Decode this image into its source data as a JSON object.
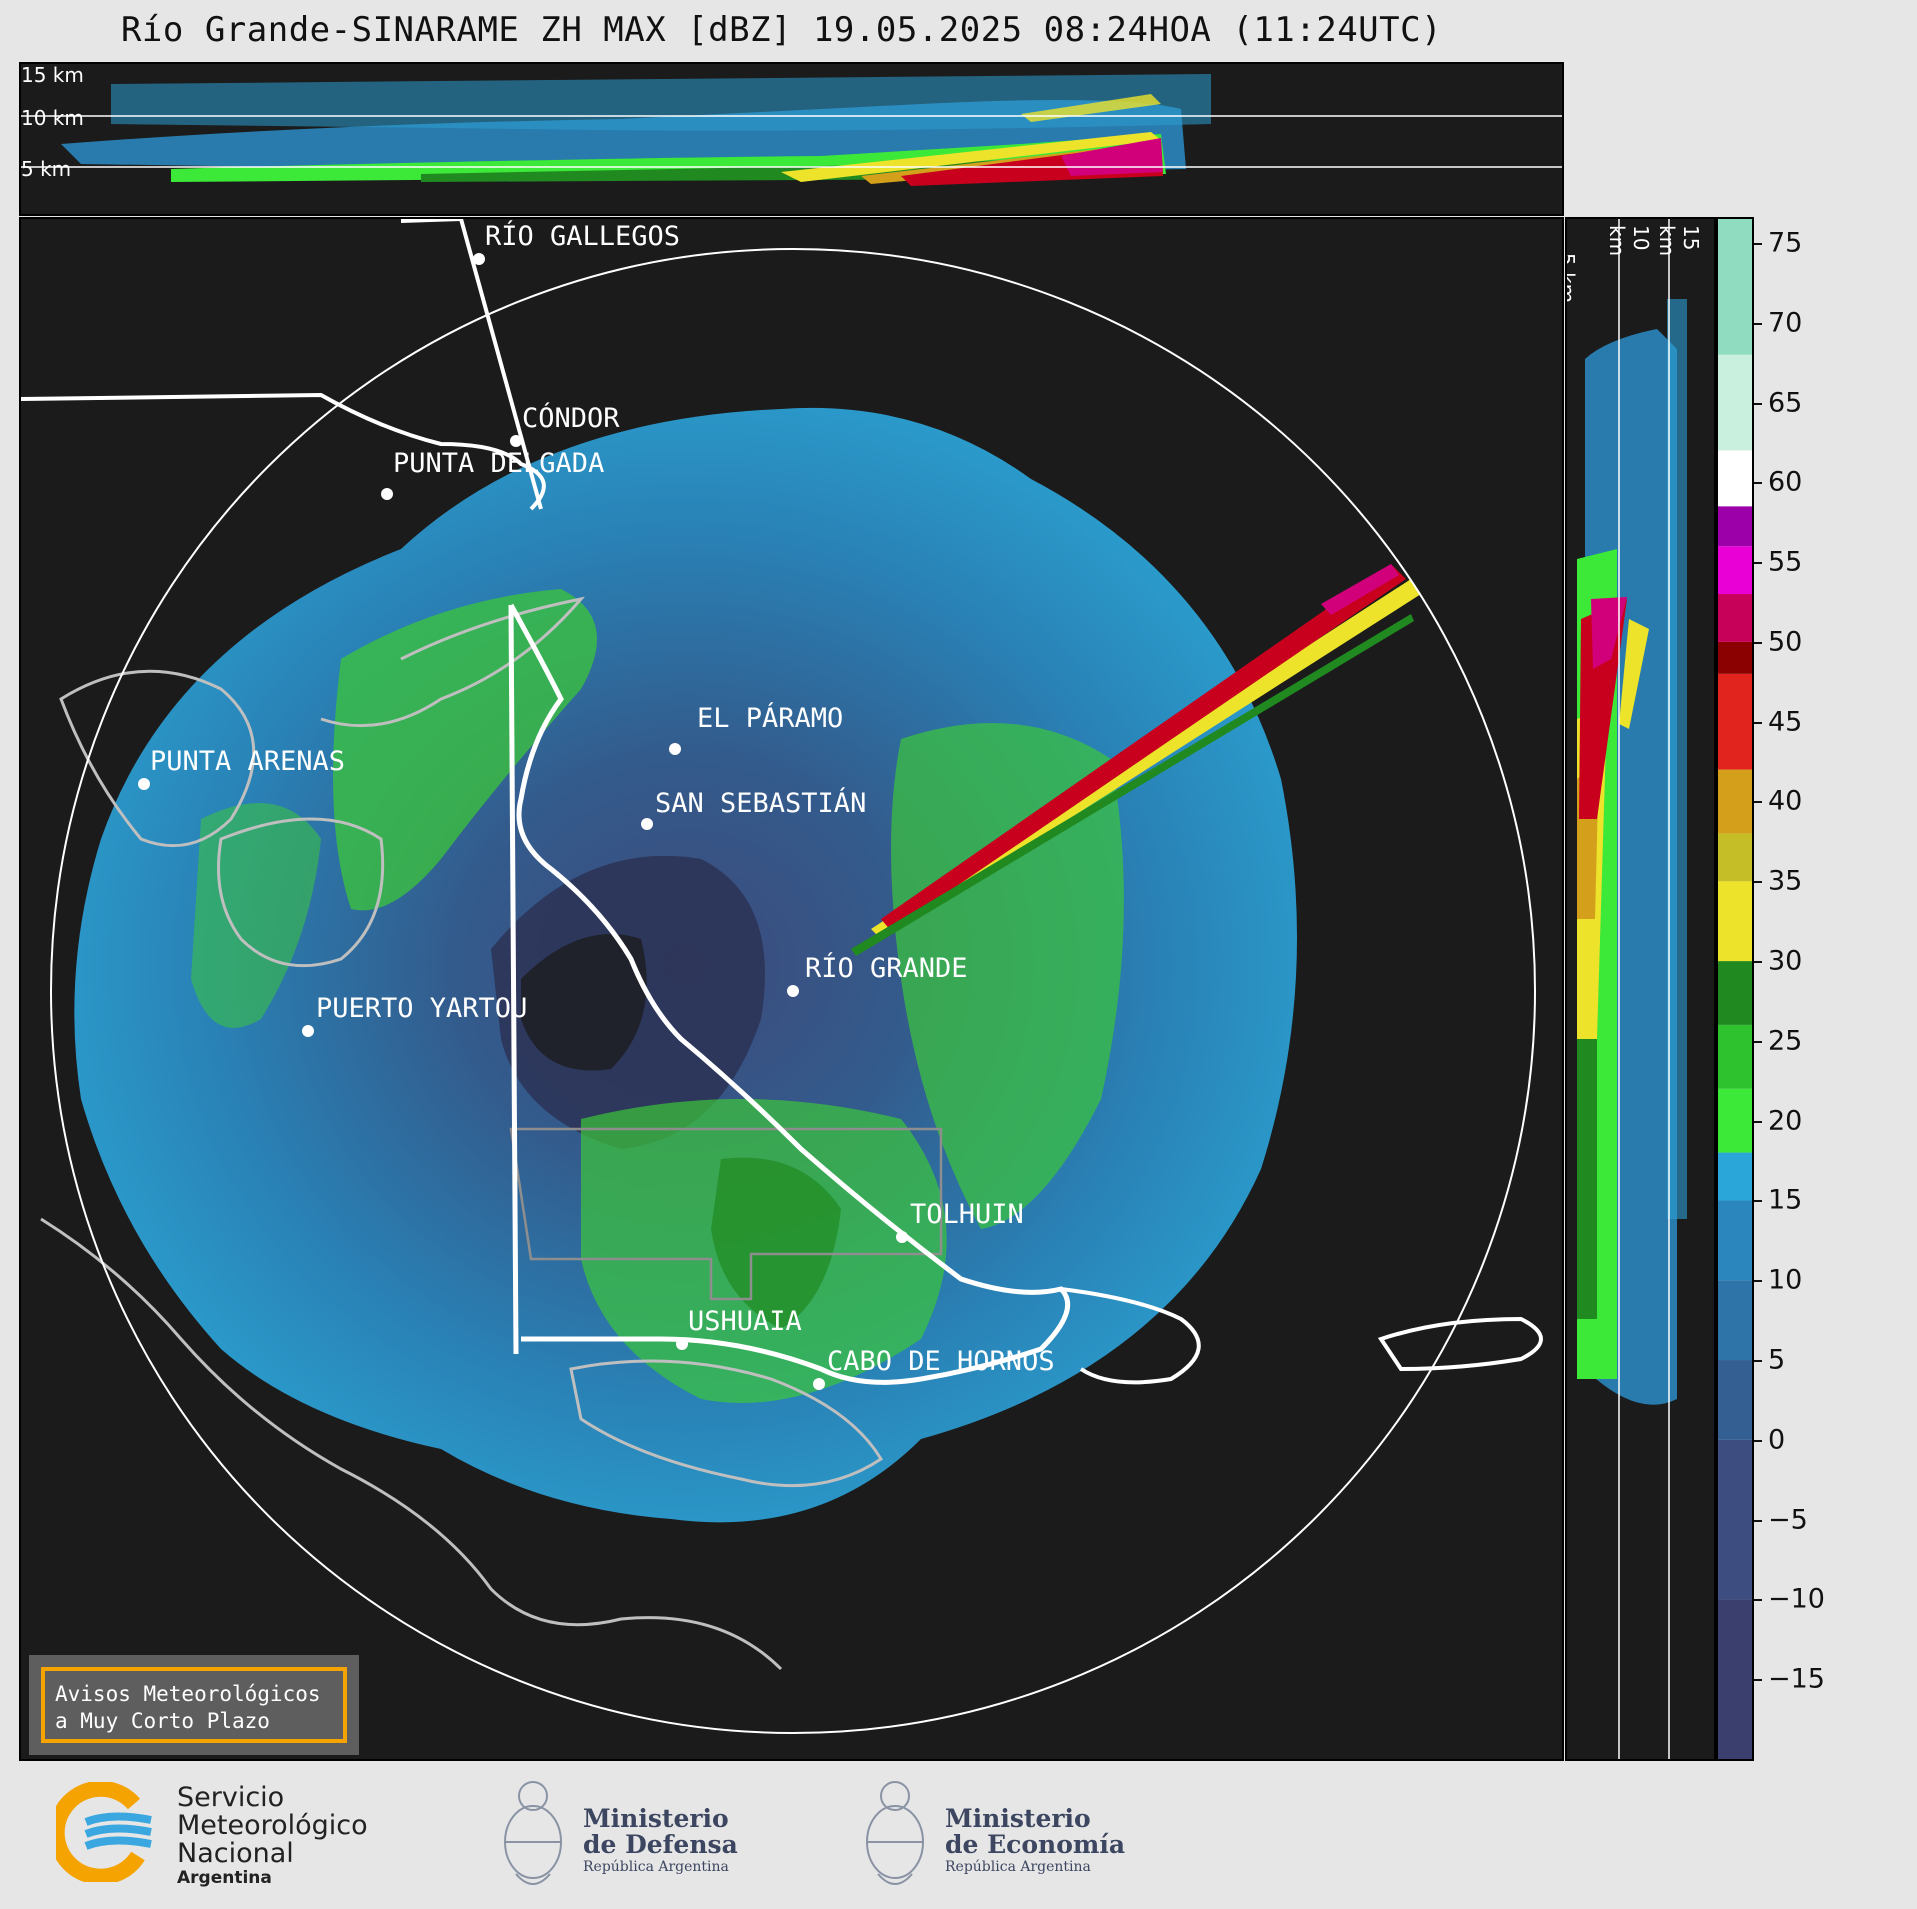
{
  "title": "Río Grande-SINARAME ZH MAX [dBZ] 19.05.2025 08:24HOA (11:24UTC)",
  "top_altitude_labels": [
    "15 km",
    "10 km",
    "5 km"
  ],
  "side_altitude_labels": [
    "5 km",
    "10 km",
    "15 km"
  ],
  "cities": [
    {
      "name": "RÍO GALLEGOS"
    },
    {
      "name": "CÓNDOR"
    },
    {
      "name": "PUNTA DELGADA"
    },
    {
      "name": "PUNTA ARENAS"
    },
    {
      "name": "EL PÁRAMO"
    },
    {
      "name": "SAN SEBASTIÁN"
    },
    {
      "name": "RÍO GRANDE"
    },
    {
      "name": "PUERTO YARTOU"
    },
    {
      "name": "TOLHUIN"
    },
    {
      "name": "USHUAIA"
    },
    {
      "name": "CABO DE HORNOS"
    }
  ],
  "colorbar": {
    "unit": "dBZ",
    "ticks": [
      "75",
      "70",
      "65",
      "60",
      "55",
      "50",
      "45",
      "40",
      "35",
      "30",
      "25",
      "20",
      "15",
      "10",
      "5",
      "0",
      "−5",
      "−10",
      "−15"
    ],
    "tick_values": [
      75,
      70,
      65,
      60,
      55,
      50,
      45,
      40,
      35,
      30,
      25,
      20,
      15,
      10,
      5,
      0,
      -5,
      -10,
      -15
    ],
    "range": [
      -20,
      76.5
    ],
    "stops": [
      {
        "from": -20,
        "color": "#3a3f6e"
      },
      {
        "from": -10,
        "color": "#3e4d80"
      },
      {
        "from": 0,
        "color": "#345f93"
      },
      {
        "from": 5,
        "color": "#2f74a8"
      },
      {
        "from": 10,
        "color": "#2a86bd"
      },
      {
        "from": 15,
        "color": "#2ba6d8"
      },
      {
        "from": 18,
        "color": "#3ce838"
      },
      {
        "from": 22,
        "color": "#2fc22f"
      },
      {
        "from": 26,
        "color": "#208a20"
      },
      {
        "from": 30,
        "color": "#ece32a"
      },
      {
        "from": 35,
        "color": "#c6be27"
      },
      {
        "from": 38,
        "color": "#d4a01b"
      },
      {
        "from": 42,
        "color": "#e2241e"
      },
      {
        "from": 48,
        "color": "#8b0000"
      },
      {
        "from": 50,
        "color": "#c7005a"
      },
      {
        "from": 53,
        "color": "#e800d6"
      },
      {
        "from": 56,
        "color": "#9c00a8"
      },
      {
        "from": 58.5,
        "color": "#ffffff"
      },
      {
        "from": 62,
        "color": "#c9f0de"
      },
      {
        "from": 68,
        "color": "#8fdcc0"
      }
    ]
  },
  "warning_box": {
    "line1": "Avisos Meteorológicos",
    "line2": "a Muy Corto Plazo"
  },
  "footer": {
    "smn": {
      "line1": "Servicio",
      "line2": "Meteorológico",
      "line3": "Nacional",
      "line4": "Argentina"
    },
    "defensa": {
      "line1": "Ministerio",
      "line2": "de Defensa",
      "line3": "República Argentina"
    },
    "economia": {
      "line1": "Ministerio",
      "line2": "de Economía",
      "line3": "República Argentina"
    }
  }
}
